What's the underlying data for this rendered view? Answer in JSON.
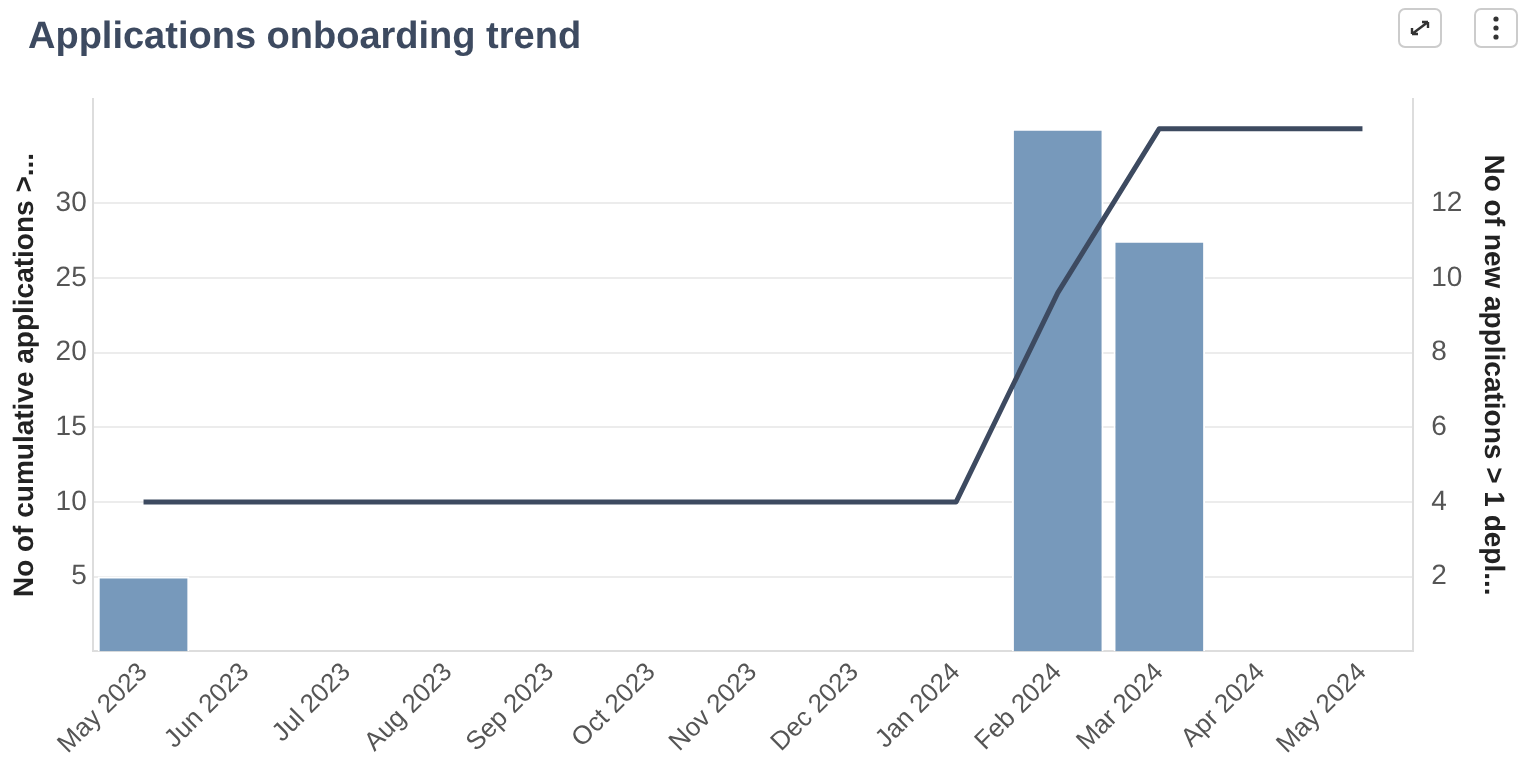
{
  "chart_data": {
    "type": "bar",
    "title": "Applications onboarding trend",
    "ylabel": "No of cumulative applications >...",
    "y2label": "No of new applications > 1 depl...",
    "categories": [
      "May 2023",
      "Jun 2023",
      "Jul 2023",
      "Aug 2023",
      "Sep 2023",
      "Oct 2023",
      "Nov 2023",
      "Dec 2023",
      "Jan 2024",
      "Feb 2024",
      "Mar 2024",
      "Apr 2024",
      "May 2024"
    ],
    "series": [
      {
        "axis": "y2",
        "color": "#7799bb",
        "values": [
          2,
          null,
          null,
          null,
          null,
          null,
          null,
          null,
          null,
          14,
          11,
          null,
          null
        ]
      },
      {
        "type": "line",
        "axis": "y",
        "color": "#3d4a60",
        "marker": "none",
        "line_style": "solid",
        "values": [
          10,
          10,
          10,
          10,
          10,
          10,
          10,
          10,
          10,
          24,
          35,
          35,
          35
        ]
      }
    ],
    "ylim": [
      0,
      37
    ],
    "yticks": [
      5,
      10,
      15,
      20,
      25,
      30
    ],
    "y2lim": [
      0,
      14.8
    ],
    "y2ticks": [
      2,
      4,
      6,
      8,
      10,
      12
    ],
    "grid": "y",
    "legend": false
  }
}
